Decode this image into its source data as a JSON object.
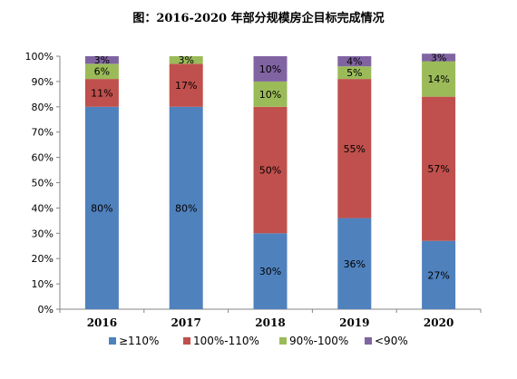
{
  "chart_data": {
    "type": "bar",
    "stacked": true,
    "title": "图：2016-2020 年部分规模房企目标完成情况",
    "xlabel": "",
    "ylabel": "",
    "ylim": [
      0,
      100
    ],
    "y_ticks": [
      "0%",
      "10%",
      "20%",
      "30%",
      "40%",
      "50%",
      "60%",
      "70%",
      "80%",
      "90%",
      "100%"
    ],
    "categories": [
      "2016",
      "2017",
      "2018",
      "2019",
      "2020"
    ],
    "series": [
      {
        "name": "≥110%",
        "color": "#4f81bd",
        "values": [
          80,
          80,
          30,
          36,
          27
        ],
        "labels": [
          "80%",
          "80%",
          "30%",
          "36%",
          "27%"
        ]
      },
      {
        "name": "100%-110%",
        "color": "#c0504d",
        "values": [
          11,
          17,
          50,
          55,
          57
        ],
        "labels": [
          "11%",
          "17%",
          "50%",
          "55%",
          "57%"
        ]
      },
      {
        "name": "90%-100%",
        "color": "#9bbb59",
        "values": [
          6,
          3,
          10,
          5,
          14
        ],
        "labels": [
          "6%",
          "3%",
          "10%",
          "5%",
          "14%"
        ]
      },
      {
        "name": "<90%",
        "color": "#8064a2",
        "values": [
          3,
          0,
          10,
          4,
          3
        ],
        "labels": [
          "3%",
          "",
          "10%",
          "4%",
          "3%"
        ]
      }
    ],
    "grid": false,
    "legend_position": "bottom"
  }
}
